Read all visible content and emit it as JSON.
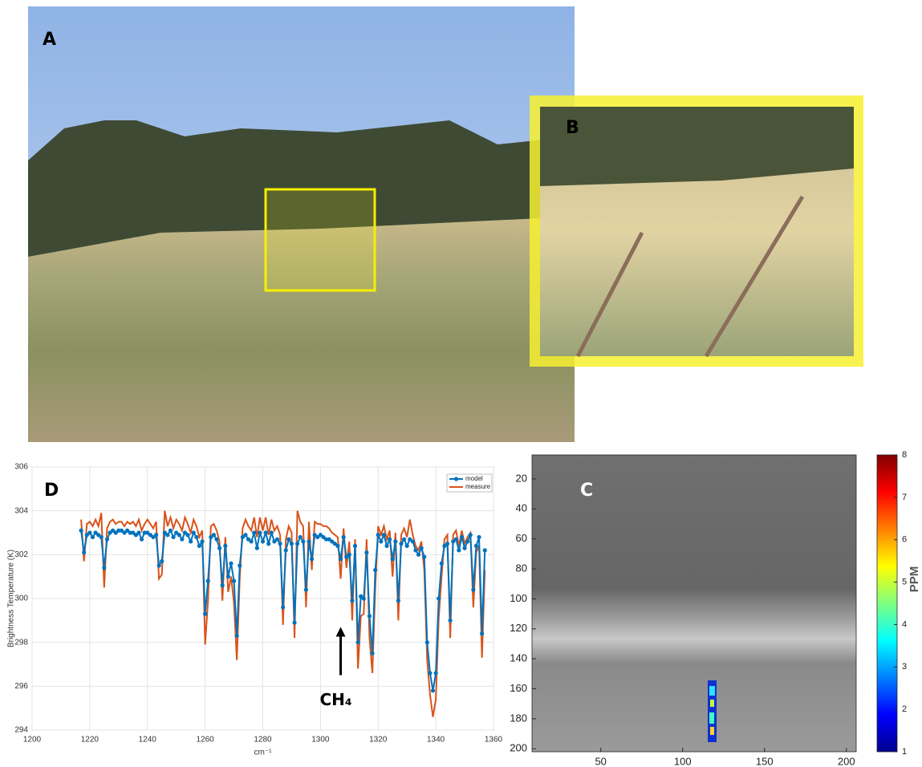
{
  "photos": [
    {
      "label": "A"
    },
    {
      "label": "B"
    }
  ],
  "chart_data": [
    {
      "type": "line",
      "panel_label": "D",
      "ylabel": "Brightness Temperature (K)",
      "xlabel": "cm⁻¹",
      "xlim": [
        1200,
        1360
      ],
      "xticks": [
        1200,
        1220,
        1240,
        1260,
        1280,
        1300,
        1320,
        1340,
        1360
      ],
      "ylim": [
        294,
        306
      ],
      "yticks": [
        294,
        296,
        298,
        300,
        302,
        304,
        306
      ],
      "grid": true,
      "legend": "upper right",
      "annotations": [
        {
          "text": "CH₄",
          "x": 1307,
          "y": 298.7
        }
      ],
      "x": [
        1217,
        1218,
        1219,
        1220,
        1221,
        1222,
        1223,
        1224,
        1225,
        1226,
        1227,
        1228,
        1229,
        1230,
        1231,
        1232,
        1233,
        1234,
        1235,
        1236,
        1237,
        1238,
        1239,
        1240,
        1241,
        1242,
        1243,
        1244,
        1245,
        1246,
        1247,
        1248,
        1249,
        1250,
        1251,
        1252,
        1253,
        1254,
        1255,
        1256,
        1257,
        1258,
        1259,
        1260,
        1261,
        1262,
        1263,
        1264,
        1265,
        1266,
        1267,
        1268,
        1269,
        1270,
        1271,
        1272,
        1273,
        1274,
        1275,
        1276,
        1277,
        1278,
        1279,
        1280,
        1281,
        1282,
        1283,
        1284,
        1285,
        1286,
        1287,
        1288,
        1289,
        1290,
        1291,
        1292,
        1293,
        1294,
        1295,
        1296,
        1297,
        1298,
        1299,
        1300,
        1301,
        1302,
        1303,
        1304,
        1305,
        1306,
        1307,
        1308,
        1309,
        1310,
        1311,
        1312,
        1313,
        1314,
        1315,
        1316,
        1317,
        1318,
        1319,
        1320,
        1321,
        1322,
        1323,
        1324,
        1325,
        1326,
        1327,
        1328,
        1329,
        1330,
        1331,
        1332,
        1333,
        1334,
        1335,
        1336,
        1337,
        1338,
        1339,
        1340,
        1341,
        1342,
        1343,
        1344,
        1345,
        1346,
        1347,
        1348,
        1349,
        1350,
        1351,
        1352,
        1353,
        1354,
        1355,
        1356,
        1357
      ],
      "series": [
        {
          "name": "model",
          "color": "#0072bd",
          "marker": true,
          "values": [
            303.1,
            302.1,
            302.9,
            303.0,
            302.8,
            303.0,
            302.9,
            302.8,
            301.4,
            302.7,
            303.0,
            303.1,
            303.0,
            303.1,
            303.1,
            303.0,
            303.1,
            303.0,
            303.0,
            302.9,
            303.0,
            302.7,
            303.0,
            303.0,
            302.9,
            302.8,
            302.9,
            301.5,
            301.7,
            303.0,
            302.9,
            303.1,
            302.8,
            303.0,
            302.9,
            302.7,
            303.0,
            302.9,
            302.6,
            303.0,
            302.8,
            302.4,
            302.6,
            299.3,
            300.8,
            302.8,
            302.9,
            302.7,
            302.3,
            300.6,
            302.4,
            301.0,
            301.6,
            300.8,
            298.3,
            301.5,
            302.8,
            302.9,
            302.7,
            302.6,
            303.0,
            302.3,
            303.0,
            302.6,
            303.0,
            302.5,
            303.0,
            302.6,
            302.7,
            302.5,
            299.6,
            302.2,
            302.7,
            302.5,
            298.9,
            302.5,
            302.8,
            302.6,
            300.4,
            302.6,
            301.8,
            302.9,
            302.8,
            302.9,
            302.8,
            302.7,
            302.7,
            302.6,
            302.5,
            302.4,
            301.8,
            302.8,
            301.9,
            302.0,
            299.9,
            302.4,
            298.0,
            300.1,
            300.0,
            302.1,
            299.2,
            297.5,
            301.3,
            302.9,
            302.6,
            302.9,
            302.4,
            302.7,
            301.8,
            302.6,
            299.9,
            302.5,
            302.7,
            302.4,
            302.7,
            302.6,
            302.2,
            302.0,
            302.3,
            301.9,
            298.0,
            296.6,
            295.8,
            296.6,
            300.0,
            301.6,
            302.4,
            302.5,
            299.0,
            302.6,
            302.7,
            302.2,
            302.8,
            302.3,
            302.6,
            302.9,
            300.4,
            302.4,
            302.8,
            298.4,
            302.2
          ]
        },
        {
          "name": "measure",
          "color": "#d95319",
          "marker": false,
          "values": [
            303.6,
            301.7,
            303.4,
            303.5,
            303.3,
            303.6,
            303.3,
            303.9,
            300.5,
            303.2,
            303.5,
            303.6,
            303.4,
            303.5,
            303.5,
            303.3,
            303.5,
            303.4,
            303.5,
            303.3,
            303.6,
            303.1,
            303.4,
            303.6,
            303.4,
            303.2,
            303.5,
            300.9,
            301.1,
            304.0,
            303.3,
            303.7,
            303.2,
            303.6,
            303.4,
            303.1,
            303.7,
            303.4,
            303.0,
            303.6,
            303.3,
            302.8,
            303.1,
            297.9,
            299.9,
            303.3,
            303.4,
            303.1,
            302.6,
            299.9,
            302.8,
            300.3,
            301.0,
            299.8,
            297.2,
            300.9,
            303.2,
            303.6,
            303.3,
            303.1,
            303.7,
            302.8,
            303.7,
            303.1,
            303.7,
            302.9,
            303.6,
            303.1,
            303.3,
            302.9,
            298.8,
            302.7,
            303.3,
            303.0,
            298.2,
            304.0,
            303.5,
            303.3,
            299.6,
            303.5,
            301.3,
            303.5,
            303.4,
            303.4,
            303.3,
            303.3,
            303.2,
            303.0,
            302.9,
            302.8,
            300.9,
            303.2,
            301.4,
            302.6,
            299.0,
            302.7,
            296.8,
            299.2,
            299.3,
            302.7,
            298.2,
            296.6,
            300.5,
            303.3,
            302.9,
            303.3,
            302.7,
            303.1,
            301.0,
            303.0,
            299.0,
            302.9,
            303.2,
            302.8,
            303.6,
            302.9,
            302.4,
            302.2,
            302.6,
            301.3,
            297.2,
            295.6,
            294.6,
            295.4,
            299.1,
            301.0,
            302.7,
            302.9,
            298.2,
            302.9,
            303.1,
            302.4,
            303.1,
            302.5,
            302.8,
            303.0,
            299.6,
            302.1,
            302.4,
            297.3,
            301.3
          ]
        }
      ]
    },
    {
      "type": "image",
      "panel_label": "C",
      "xlim": [
        8,
        206
      ],
      "xticks": [
        50,
        100,
        150,
        200
      ],
      "ylim": [
        4,
        202
      ],
      "yticks": [
        20,
        40,
        60,
        80,
        100,
        120,
        140,
        160,
        180,
        200
      ],
      "colorbar": {
        "label": "PPM",
        "lim": [
          1,
          8
        ],
        "ticks": [
          1,
          2,
          3,
          4,
          5,
          6,
          7,
          8
        ]
      }
    }
  ]
}
